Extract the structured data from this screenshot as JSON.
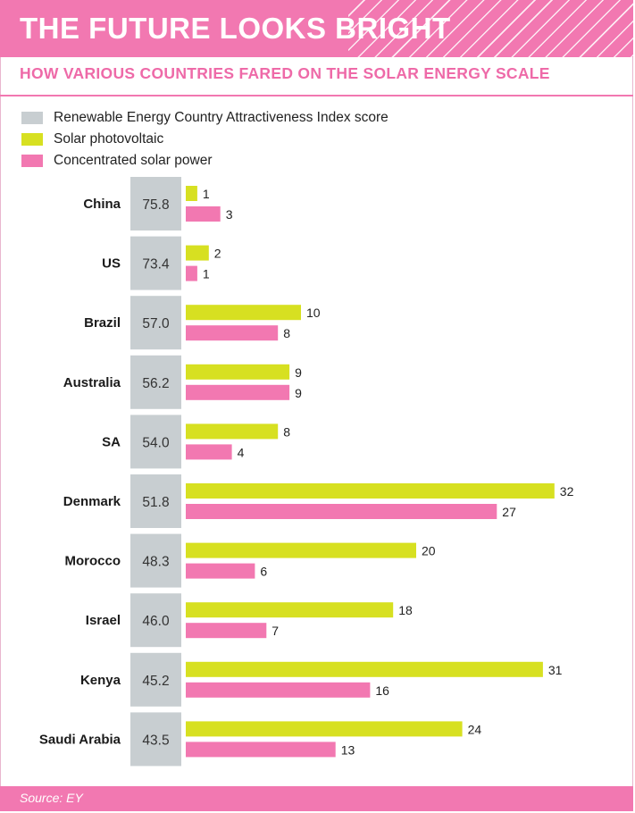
{
  "header": {
    "title": "THE FUTURE LOOKS BRIGHT"
  },
  "subtitle": "HOW VARIOUS COUNTRIES FARED ON THE SOLAR ENERGY SCALE",
  "footer": {
    "source": "Source: EY"
  },
  "colors": {
    "index": "#c8ced1",
    "pv": "#d7e021",
    "csp": "#f278b1",
    "accent": "#f278b1"
  },
  "legend": [
    {
      "label": "Renewable Energy Country Attractiveness Index score",
      "color": "#c8ced1"
    },
    {
      "label": "Solar photovoltaic",
      "color": "#d7e021"
    },
    {
      "label": "Concentrated solar power",
      "color": "#f278b1"
    }
  ],
  "chart_data": {
    "type": "bar",
    "title": "THE FUTURE LOOKS BRIGHT",
    "subtitle": "HOW VARIOUS COUNTRIES FARED ON THE SOLAR ENERGY SCALE",
    "categories": [
      "China",
      "US",
      "Brazil",
      "Australia",
      "SA",
      "Denmark",
      "Morocco",
      "Israel",
      "Kenya",
      "Saudi Arabia"
    ],
    "index_scores": [
      "75.8",
      "73.4",
      "57.0",
      "56.2",
      "54.0",
      "51.8",
      "48.3",
      "46.0",
      "45.2",
      "43.5"
    ],
    "series": [
      {
        "name": "Solar photovoltaic",
        "values": [
          1,
          2,
          10,
          9,
          8,
          32,
          20,
          18,
          31,
          24
        ]
      },
      {
        "name": "Concentrated solar power",
        "values": [
          3,
          1,
          8,
          9,
          4,
          27,
          6,
          7,
          16,
          13
        ]
      }
    ],
    "legend_position": "top-left",
    "grid": false
  }
}
